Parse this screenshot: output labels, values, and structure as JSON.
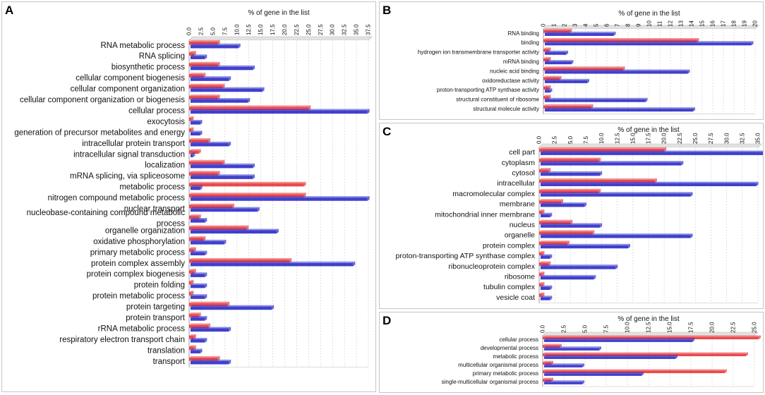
{
  "chart_data": [
    {
      "id": "A",
      "panel_label": "A",
      "type": "bar",
      "orientation": "horizontal",
      "title": "% of gene in the list",
      "xlim": [
        0,
        37.5
      ],
      "ticks": [
        "0.0",
        "2.5",
        "5.0",
        "7.5",
        "10.0",
        "12.5",
        "15.0",
        "17.5",
        "20.0",
        "22.5",
        "25.0",
        "27.5",
        "30.0",
        "32.5",
        "35.0",
        "37.5"
      ],
      "categories": [
        "RNA metabolic process",
        "RNA splicing",
        "biosynthetic process",
        "cellular component biogenesis",
        "cellular component organization",
        "cellular component organization or biogenesis",
        "cellular process",
        "exocytosis",
        "generation of precursor metabolites and energy",
        "intracellular protein transport",
        "intracellular signal transduction",
        "localization",
        "mRNA splicing, via spliceosome",
        "metabolic process",
        "nitrogen compound metabolic process",
        "nuclear transport",
        "nucleobase-containing compound metabolic process",
        "organelle organization",
        "oxidative phosphorylation",
        "primary metabolic process",
        "protein complex assembly",
        "protein complex biogenesis",
        "protein folding",
        "protein metabolic process",
        "protein targeting",
        "protein transport",
        "rRNA metabolic process",
        "respiratory electron transport chain",
        "translation",
        "transport"
      ],
      "series": [
        {
          "name": "red",
          "color": "#e8373b",
          "values": [
            6.0,
            1.0,
            6.0,
            3.0,
            7.0,
            6.0,
            25.0,
            0.5,
            0.5,
            4.0,
            2.0,
            7.0,
            6.0,
            24.0,
            24.0,
            9.0,
            2.0,
            12.0,
            3.0,
            1.0,
            21.0,
            1.0,
            0.5,
            0.5,
            8.0,
            2.0,
            4.0,
            1.0,
            1.0,
            6.0
          ]
        },
        {
          "name": "blue",
          "color": "#2b2bc8",
          "values": [
            10.0,
            3.0,
            13.0,
            8.0,
            15.0,
            12.0,
            37.0,
            2.0,
            2.0,
            8.0,
            0.5,
            13.0,
            13.0,
            2.0,
            37.0,
            14.0,
            3.0,
            18.0,
            7.0,
            3.0,
            34.0,
            3.0,
            3.0,
            3.0,
            17.0,
            3.0,
            8.0,
            3.0,
            2.0,
            8.0
          ]
        }
      ]
    },
    {
      "id": "B",
      "panel_label": "B",
      "type": "bar",
      "orientation": "horizontal",
      "title": "% of gene in the list",
      "xlim": [
        0,
        20
      ],
      "ticks": [
        "0",
        "1",
        "2",
        "3",
        "4",
        "5",
        "6",
        "7",
        "8",
        "9",
        "10",
        "11",
        "12",
        "13",
        "14",
        "15",
        "16",
        "17",
        "18",
        "19",
        "20"
      ],
      "categories": [
        "RNA binding",
        "binding",
        "hydrogen ion transmembrane transporter activity",
        "mRNA binding",
        "nucleic acid binding",
        "oxidoreductase activity",
        "proton-transporting ATP synthase activity",
        "structural constituent of ribosome",
        "structural molecule activity"
      ],
      "series": [
        {
          "name": "red",
          "color": "#e8373b",
          "values": [
            2.5,
            14.5,
            0.5,
            0.5,
            7.5,
            1.5,
            0.5,
            0.5,
            4.5
          ]
        },
        {
          "name": "blue",
          "color": "#2b2bc8",
          "values": [
            6.5,
            19.5,
            2.0,
            2.5,
            13.5,
            4.0,
            0.5,
            9.5,
            14.0
          ]
        }
      ]
    },
    {
      "id": "C",
      "panel_label": "C",
      "type": "bar",
      "orientation": "horizontal",
      "title": "% of gene in the list",
      "xlim": [
        0,
        35
      ],
      "ticks": [
        "0.0",
        "2.5",
        "5.0",
        "7.5",
        "10.0",
        "12.5",
        "15.0",
        "17.5",
        "20.0",
        "22.5",
        "25.0",
        "27.5",
        "30.0",
        "32.5",
        "35.0"
      ],
      "categories": [
        "cell part",
        "cytoplasm",
        "cytosol",
        "intracellular",
        "macromolecular complex",
        "membrane",
        "mitochondrial inner membrane",
        "nucleus",
        "organelle",
        "protein complex",
        "proton-transporting ATP synthase complex",
        "ribonucleoprotein complex",
        "ribosome",
        "tubulin complex",
        "vesicle coat"
      ],
      "series": [
        {
          "name": "red",
          "color": "#e8373b",
          "values": [
            20.0,
            9.5,
            1.5,
            18.5,
            9.5,
            3.5,
            0.5,
            5.0,
            8.5,
            4.5,
            0.5,
            1.5,
            0.5,
            0.5,
            0.5
          ]
        },
        {
          "name": "blue",
          "color": "#2b2bc8",
          "values": [
            36.0,
            22.5,
            9.5,
            34.5,
            24.0,
            7.0,
            1.5,
            9.5,
            24.0,
            14.0,
            1.5,
            12.0,
            8.5,
            1.5,
            1.5
          ]
        }
      ]
    },
    {
      "id": "D",
      "panel_label": "D",
      "type": "bar",
      "orientation": "horizontal",
      "title": "% of gene in the list",
      "xlim": [
        0,
        25
      ],
      "ticks": [
        "0.0",
        "2.5",
        "5.0",
        "7.5",
        "10.0",
        "12.5",
        "15.0",
        "17.5",
        "20.0",
        "22.5",
        "25.0"
      ],
      "categories": [
        "cellular process",
        "developmental process",
        "metabolic process",
        "multicellular organismal process",
        "primary metabolic process",
        "single-multicellular organismal process"
      ],
      "series": [
        {
          "name": "red",
          "color": "#e8373b",
          "values": [
            25.5,
            2.0,
            24.0,
            1.0,
            21.5,
            1.0
          ]
        },
        {
          "name": "blue",
          "color": "#2b2bc8",
          "values": [
            17.5,
            6.5,
            15.5,
            4.5,
            11.5,
            4.5
          ]
        }
      ]
    }
  ]
}
